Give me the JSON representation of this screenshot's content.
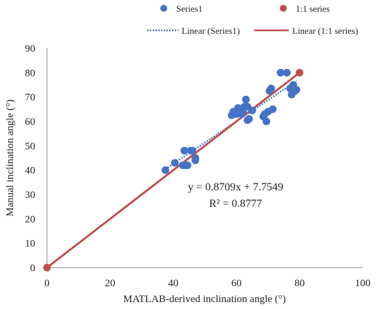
{
  "chart_data": {
    "type": "scatter",
    "xlabel": "MATLAB-derived inclination angle (°)",
    "ylabel": "Manual inclination angle (°)",
    "xlim": [
      0,
      100
    ],
    "ylim": [
      0,
      90
    ],
    "x_ticks": [
      "0",
      "20",
      "40",
      "60",
      "80",
      "100"
    ],
    "y_ticks": [
      "0",
      "10",
      "20",
      "30",
      "40",
      "50",
      "60",
      "70",
      "80",
      "90"
    ],
    "grid": false,
    "legend_position": "top",
    "series": [
      {
        "name": "Series1",
        "kind": "scatter",
        "color": "#4472C4",
        "points": [
          [
            37.5,
            40
          ],
          [
            40.5,
            43
          ],
          [
            43,
            42
          ],
          [
            43.5,
            48
          ],
          [
            44,
            42
          ],
          [
            44.5,
            42
          ],
          [
            45.5,
            48
          ],
          [
            46,
            48
          ],
          [
            47,
            45
          ],
          [
            47,
            44
          ],
          [
            58.5,
            62.5
          ],
          [
            59,
            64
          ],
          [
            60,
            63
          ],
          [
            60.5,
            65.5
          ],
          [
            61,
            64.5
          ],
          [
            61.5,
            63
          ],
          [
            62,
            64
          ],
          [
            62.5,
            66
          ],
          [
            63,
            69
          ],
          [
            63.5,
            66
          ],
          [
            63.5,
            60.5
          ],
          [
            64,
            61
          ],
          [
            65,
            64.5
          ],
          [
            68.5,
            62
          ],
          [
            69,
            63
          ],
          [
            69.5,
            60
          ],
          [
            70,
            64
          ],
          [
            70.5,
            72.5
          ],
          [
            71,
            73.5
          ],
          [
            71.5,
            65
          ],
          [
            74,
            80
          ],
          [
            76,
            80
          ],
          [
            77,
            73.5
          ],
          [
            77.5,
            71
          ],
          [
            78,
            75
          ],
          [
            78.5,
            72.5
          ],
          [
            79,
            73
          ]
        ]
      },
      {
        "name": "1:1 series",
        "kind": "scatter",
        "color": "#C0504D",
        "points": [
          [
            0,
            0
          ],
          [
            80,
            80
          ]
        ]
      }
    ],
    "trendlines": [
      {
        "name": "Linear (Series1)",
        "style": "dotted",
        "color": "#4472C4",
        "slope": 0.8709,
        "intercept": 7.7549,
        "x_range": [
          37.5,
          79
        ]
      },
      {
        "name": "Linear (1:1 series)",
        "style": "solid",
        "color": "#C0504D",
        "slope": 1,
        "intercept": 0,
        "x_range": [
          0,
          80
        ]
      }
    ],
    "annotations": {
      "equation": "y = 0.8709x + 7.7549",
      "r_squared": "R² = 0.8777"
    }
  }
}
